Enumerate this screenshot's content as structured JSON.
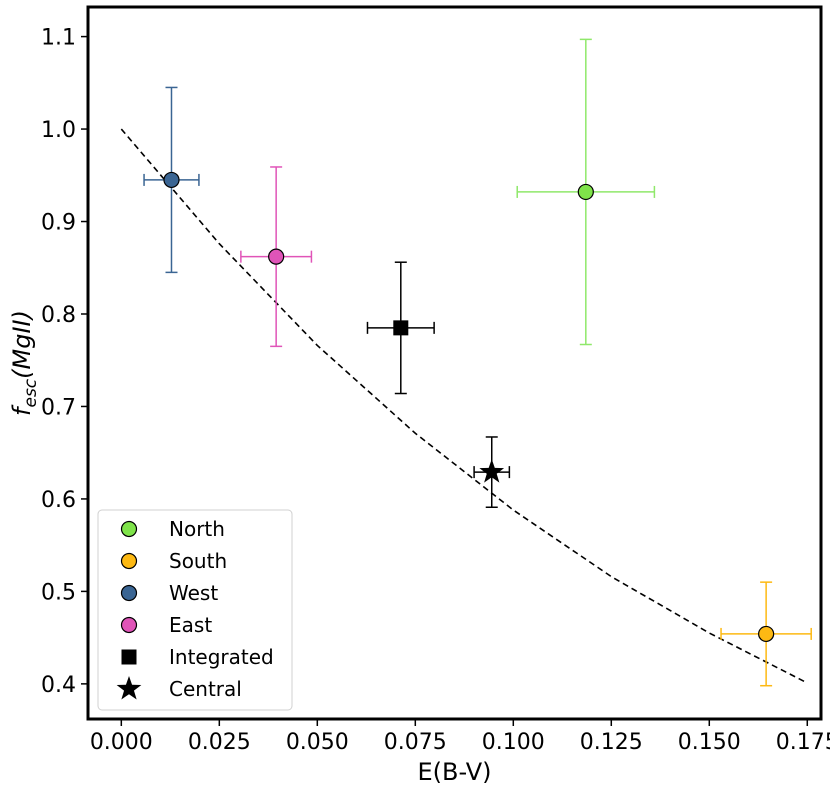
{
  "chart_data": {
    "type": "scatter",
    "xlabel": "E(B-V)",
    "ylabel": {
      "main": "f",
      "sub": "esc",
      "paren": "(MgII)"
    },
    "xlim": [
      -0.0085,
      0.1785
    ],
    "ylim": [
      0.362,
      1.132
    ],
    "xticks": [
      0.0,
      0.025,
      0.05,
      0.075,
      0.1,
      0.125,
      0.15,
      0.175
    ],
    "xtick_labels": [
      "0.000",
      "0.025",
      "0.050",
      "0.075",
      "0.100",
      "0.125",
      "0.150",
      "0.175"
    ],
    "yticks": [
      0.4,
      0.5,
      0.6,
      0.7,
      0.8,
      0.9,
      1.0,
      1.1
    ],
    "ytick_labels": [
      "0.4",
      "0.5",
      "0.6",
      "0.7",
      "0.8",
      "0.9",
      "1.0",
      "1.1"
    ],
    "grid": false,
    "legend_position": "lower-left",
    "points": [
      {
        "name": "North",
        "x": 0.1185,
        "y": 0.932,
        "xerr": 0.0175,
        "yerr_low": 0.165,
        "yerr_high": 0.165,
        "marker": "circle",
        "color": "#7FE34A",
        "errcolor": "#8FE86A"
      },
      {
        "name": "South",
        "x": 0.1645,
        "y": 0.454,
        "xerr": 0.0115,
        "yerr_low": 0.056,
        "yerr_high": 0.056,
        "marker": "circle",
        "color": "#FDB913",
        "errcolor": "#FDB913"
      },
      {
        "name": "West",
        "x": 0.0128,
        "y": 0.945,
        "xerr": 0.007,
        "yerr_low": 0.1,
        "yerr_high": 0.1,
        "marker": "circle",
        "color": "#3A6593",
        "errcolor": "#3A6593"
      },
      {
        "name": "East",
        "x": 0.0395,
        "y": 0.862,
        "xerr": 0.009,
        "yerr_low": 0.097,
        "yerr_high": 0.097,
        "marker": "circle",
        "color": "#E054B8",
        "errcolor": "#E054B8"
      },
      {
        "name": "Integrated",
        "x": 0.0713,
        "y": 0.785,
        "xerr": 0.0085,
        "yerr_low": 0.071,
        "yerr_high": 0.071,
        "marker": "square",
        "color": "#000000",
        "errcolor": "#000000"
      },
      {
        "name": "Central",
        "x": 0.0945,
        "y": 0.629,
        "xerr": 0.0045,
        "yerr_low": 0.038,
        "yerr_high": 0.038,
        "marker": "star",
        "color": "#000000",
        "errcolor": "#000000"
      }
    ],
    "curve": {
      "style": "dashed",
      "color": "#000000",
      "points": [
        [
          0.0,
          1.0
        ],
        [
          0.025,
          0.876
        ],
        [
          0.05,
          0.766
        ],
        [
          0.075,
          0.671
        ],
        [
          0.1,
          0.588
        ],
        [
          0.125,
          0.516
        ],
        [
          0.15,
          0.455
        ],
        [
          0.175,
          0.401
        ]
      ]
    },
    "legend": [
      "North",
      "South",
      "West",
      "East",
      "Integrated",
      "Central"
    ]
  }
}
